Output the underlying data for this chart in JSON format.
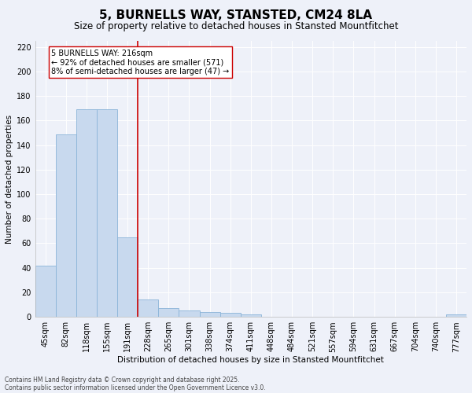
{
  "title": "5, BURNELLS WAY, STANSTED, CM24 8LA",
  "subtitle": "Size of property relative to detached houses in Stansted Mountfitchet",
  "xlabel": "Distribution of detached houses by size in Stansted Mountfitchet",
  "ylabel": "Number of detached properties",
  "categories": [
    "45sqm",
    "82sqm",
    "118sqm",
    "155sqm",
    "191sqm",
    "228sqm",
    "265sqm",
    "301sqm",
    "338sqm",
    "374sqm",
    "411sqm",
    "448sqm",
    "484sqm",
    "521sqm",
    "557sqm",
    "594sqm",
    "631sqm",
    "667sqm",
    "704sqm",
    "740sqm",
    "777sqm"
  ],
  "values": [
    42,
    149,
    169,
    169,
    65,
    14,
    7,
    5,
    4,
    3,
    2,
    0,
    0,
    0,
    0,
    0,
    0,
    0,
    0,
    0,
    2
  ],
  "bar_color": "#c8d9ee",
  "bar_edge_color": "#8ab4d8",
  "vline_x": 4.5,
  "vline_color": "#cc0000",
  "annotation_text": "5 BURNELLS WAY: 216sqm\n← 92% of detached houses are smaller (571)\n8% of semi-detached houses are larger (47) →",
  "annotation_box_color": "#ffffff",
  "annotation_box_edge": "#cc0000",
  "ylim": [
    0,
    225
  ],
  "yticks": [
    0,
    20,
    40,
    60,
    80,
    100,
    120,
    140,
    160,
    180,
    200,
    220
  ],
  "footer1": "Contains HM Land Registry data © Crown copyright and database right 2025.",
  "footer2": "Contains public sector information licensed under the Open Government Licence v3.0.",
  "bg_color": "#eef1f9",
  "grid_color": "#ffffff",
  "title_fontsize": 11,
  "subtitle_fontsize": 8.5,
  "axis_label_fontsize": 7.5,
  "tick_fontsize": 7,
  "footer_fontsize": 5.5,
  "annotation_fontsize": 7
}
